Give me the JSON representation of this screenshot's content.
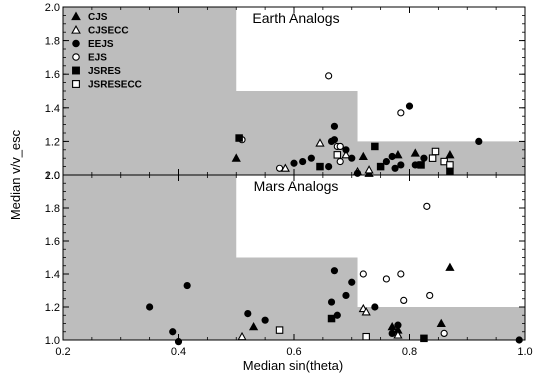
{
  "chart_data": [
    {
      "type": "scatter",
      "title": "Earth Analogs",
      "xlabel": "",
      "ylabel": "Median v/v_esc",
      "xlim": [
        0.2,
        1.0
      ],
      "ylim": [
        1.0,
        2.0
      ],
      "xticks": [
        "",
        "",
        "",
        "",
        ""
      ],
      "yticks": [
        "1.0",
        "1.2",
        "1.4",
        "1.6",
        "1.8",
        "2.0"
      ],
      "legend": {
        "placement": "top-left",
        "entries": [
          {
            "name": "CJS",
            "marker": "triangle-filled"
          },
          {
            "name": "CJSECC",
            "marker": "triangle-open"
          },
          {
            "name": "EEJS",
            "marker": "circle-filled"
          },
          {
            "name": "EJS",
            "marker": "circle-open"
          },
          {
            "name": "JSRES",
            "marker": "square-filled"
          },
          {
            "name": "JSRESECC",
            "marker": "square-open"
          }
        ]
      },
      "shaded_region": [
        [
          0.2,
          2.0
        ],
        [
          0.5,
          2.0
        ],
        [
          0.5,
          1.5
        ],
        [
          0.71,
          1.5
        ],
        [
          0.71,
          1.2
        ],
        [
          1.0,
          1.2
        ],
        [
          1.0,
          1.0
        ],
        [
          0.2,
          1.0
        ]
      ],
      "series": [
        {
          "name": "CJS",
          "marker": "triangle-filled",
          "points": [
            [
              0.5,
              1.1
            ],
            [
              0.81,
              1.13
            ],
            [
              0.87,
              1.12
            ],
            [
              0.78,
              1.12
            ],
            [
              0.73,
              1.01
            ],
            [
              0.72,
              1.11
            ]
          ]
        },
        {
          "name": "CJSECC",
          "marker": "triangle-open",
          "points": [
            [
              0.585,
              1.04
            ],
            [
              0.645,
              1.19
            ],
            [
              0.69,
              1.12
            ],
            [
              0.71,
              1.02
            ],
            [
              0.73,
              1.03
            ]
          ]
        },
        {
          "name": "EEJS",
          "marker": "circle-filled",
          "points": [
            [
              0.6,
              1.07
            ],
            [
              0.615,
              1.08
            ],
            [
              0.63,
              1.1
            ],
            [
              0.66,
              1.05
            ],
            [
              0.665,
              1.2
            ],
            [
              0.67,
              1.21
            ],
            [
              0.67,
              1.29
            ],
            [
              0.68,
              1.17
            ],
            [
              0.69,
              1.15
            ],
            [
              0.7,
              1.1
            ],
            [
              0.71,
              1.01
            ],
            [
              0.76,
              1.08
            ],
            [
              0.77,
              1.11
            ],
            [
              0.775,
              1.04
            ],
            [
              0.785,
              1.06
            ],
            [
              0.8,
              1.41
            ],
            [
              0.81,
              1.06
            ],
            [
              0.825,
              1.1
            ],
            [
              0.92,
              1.2
            ]
          ]
        },
        {
          "name": "EJS",
          "marker": "circle-open",
          "points": [
            [
              0.51,
              1.21
            ],
            [
              0.575,
              1.04
            ],
            [
              0.66,
              1.59
            ],
            [
              0.675,
              1.17
            ],
            [
              0.68,
              1.08
            ],
            [
              0.68,
              1.17
            ],
            [
              0.785,
              1.37
            ]
          ]
        },
        {
          "name": "JSRES",
          "marker": "square-filled",
          "points": [
            [
              0.505,
              1.22
            ],
            [
              0.645,
              1.05
            ],
            [
              0.74,
              1.17
            ],
            [
              0.75,
              1.05
            ],
            [
              0.82,
              1.06
            ],
            [
              0.87,
              1.02
            ]
          ]
        },
        {
          "name": "JSRESECC",
          "marker": "square-open",
          "points": [
            [
              0.675,
              1.12
            ],
            [
              0.84,
              1.1
            ],
            [
              0.845,
              1.14
            ],
            [
              0.86,
              1.08
            ],
            [
              0.87,
              1.06
            ]
          ]
        }
      ]
    },
    {
      "type": "scatter",
      "title": "Mars Analogs",
      "xlabel": "Median sin(theta)",
      "ylabel": "",
      "xlim": [
        0.2,
        1.0
      ],
      "ylim": [
        1.0,
        2.0
      ],
      "xticks": [
        "0.2",
        "0.4",
        "0.6",
        "0.8",
        "1.0"
      ],
      "yticks": [
        "1.0",
        "1.2",
        "1.4",
        "1.6",
        "1.8",
        "2.0"
      ],
      "shaded_region": [
        [
          0.2,
          2.0
        ],
        [
          0.5,
          2.0
        ],
        [
          0.5,
          1.5
        ],
        [
          0.71,
          1.5
        ],
        [
          0.71,
          1.2
        ],
        [
          1.0,
          1.2
        ],
        [
          1.0,
          1.0
        ],
        [
          0.2,
          1.0
        ]
      ],
      "series": [
        {
          "name": "CJS",
          "marker": "triangle-filled",
          "points": [
            [
              0.87,
              1.44
            ],
            [
              0.855,
              1.1
            ],
            [
              0.78,
              1.06
            ],
            [
              0.77,
              1.08
            ],
            [
              0.53,
              1.08
            ]
          ]
        },
        {
          "name": "CJSECC",
          "marker": "triangle-open",
          "points": [
            [
              0.51,
              1.02
            ],
            [
              0.72,
              1.19
            ],
            [
              0.725,
              1.17
            ],
            [
              0.78,
              1.03
            ]
          ]
        },
        {
          "name": "EEJS",
          "marker": "circle-filled",
          "points": [
            [
              0.35,
              1.2
            ],
            [
              0.39,
              1.05
            ],
            [
              0.4,
              0.99
            ],
            [
              0.415,
              1.33
            ],
            [
              0.52,
              1.16
            ],
            [
              0.55,
              1.12
            ],
            [
              0.665,
              1.23
            ],
            [
              0.67,
              1.42
            ],
            [
              0.675,
              1.15
            ],
            [
              0.69,
              1.27
            ],
            [
              0.7,
              1.35
            ],
            [
              0.74,
              1.2
            ],
            [
              0.77,
              1.04
            ],
            [
              0.78,
              1.09
            ],
            [
              0.99,
              1.0
            ]
          ]
        },
        {
          "name": "EJS",
          "marker": "circle-open",
          "points": [
            [
              0.72,
              1.4
            ],
            [
              0.76,
              1.37
            ],
            [
              0.785,
              1.4
            ],
            [
              0.79,
              1.24
            ],
            [
              0.83,
              1.81
            ],
            [
              0.835,
              1.27
            ],
            [
              0.86,
              1.04
            ]
          ]
        },
        {
          "name": "JSRES",
          "marker": "square-filled",
          "points": [
            [
              0.665,
              1.13
            ],
            [
              0.825,
              1.01
            ]
          ]
        },
        {
          "name": "JSRESECC",
          "marker": "square-open",
          "points": [
            [
              0.575,
              1.06
            ],
            [
              0.725,
              1.02
            ]
          ]
        }
      ]
    }
  ]
}
